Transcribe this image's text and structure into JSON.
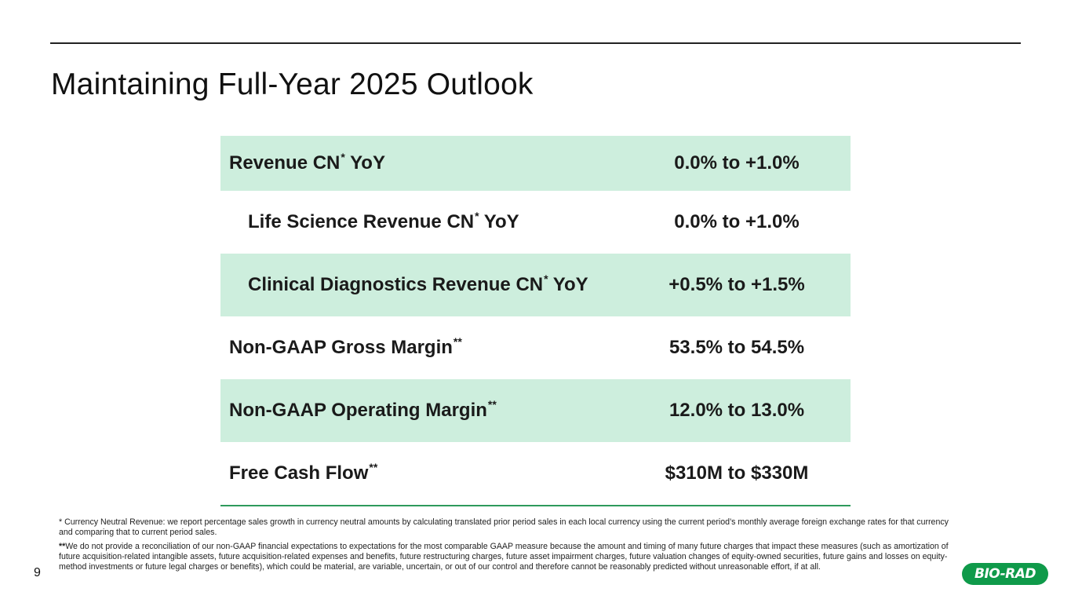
{
  "title": "Maintaining Full-Year 2025 Outlook",
  "table": {
    "rows": [
      {
        "label": "Revenue CN",
        "mark": "*",
        "label_suffix": " YoY",
        "value": "0.0% to +1.0%",
        "shaded": true,
        "indent": false
      },
      {
        "label": "Life Science Revenue CN",
        "mark": "*",
        "label_suffix": " YoY",
        "value": "0.0% to +1.0%",
        "shaded": false,
        "indent": true
      },
      {
        "label": "Clinical Diagnostics Revenue CN",
        "mark": "*",
        "label_suffix": " YoY",
        "value": "+0.5% to +1.5%",
        "shaded": true,
        "indent": true
      },
      {
        "label": "Non-GAAP Gross Margin",
        "mark": "**",
        "label_suffix": "",
        "value": "53.5% to 54.5%",
        "shaded": false,
        "indent": false
      },
      {
        "label": "Non-GAAP Operating Margin",
        "mark": "**",
        "label_suffix": "",
        "value": "12.0% to 13.0%",
        "shaded": true,
        "indent": false
      },
      {
        "label": "Free Cash Flow",
        "mark": "**",
        "label_suffix": "",
        "value": "$310M to $330M",
        "shaded": false,
        "indent": false
      }
    ]
  },
  "footnotes": {
    "note1_mark": "*",
    "note1_text": " Currency Neutral Revenue: we report percentage sales growth in currency neutral amounts by calculating translated prior period sales in each local currency using the current period’s monthly average foreign exchange rates for that currency and comparing that to current period sales.",
    "note2_mark": "**",
    "note2_text": "We do not provide a reconciliation of our non-GAAP financial expectations to expectations for the most comparable GAAP measure because the amount and timing of many future charges that impact these measures (such as amortization of future acquisition-related intangible assets, future acquisition-related expenses and benefits, future restructuring charges, future asset impairment charges, future valuation changes of equity-owned securities, future gains and losses on equity-method investments or future legal charges or benefits), which could be material, are variable, uncertain, or out of our control and therefore cannot be reasonably predicted without unreasonable effort, if at all."
  },
  "page_number": "9",
  "logo": {
    "text": "BIO-RAD",
    "color": "#0f9a4a"
  },
  "colors": {
    "row_shade": "#cdeedd",
    "accent_rule": "#2e9a5c"
  }
}
